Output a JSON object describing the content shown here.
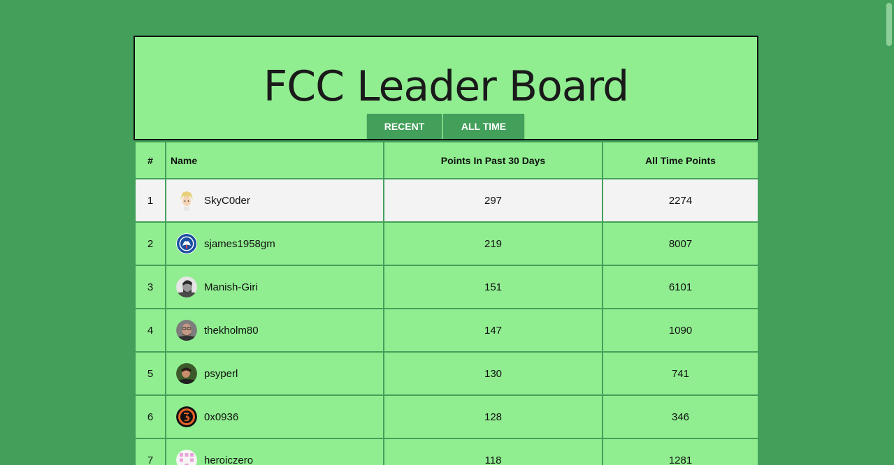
{
  "header": {
    "title": "FCC Leader Board",
    "tabs": [
      "RECENT",
      "ALL TIME"
    ]
  },
  "table": {
    "columns": [
      "#",
      "Name",
      "Points In Past 30 Days",
      "All Time Points"
    ],
    "rows": [
      {
        "rank": "1",
        "name": "SkyC0der",
        "recent": "297",
        "alltime": "2274",
        "avatar": "anime-avatar"
      },
      {
        "rank": "2",
        "name": "sjames1958gm",
        "recent": "219",
        "alltime": "8007",
        "avatar": "chelsea-crest-avatar"
      },
      {
        "rank": "3",
        "name": "Manish-Giri",
        "recent": "151",
        "alltime": "6101",
        "avatar": "photo-avatar"
      },
      {
        "rank": "4",
        "name": "thekholm80",
        "recent": "147",
        "alltime": "1090",
        "avatar": "photo-avatar"
      },
      {
        "rank": "5",
        "name": "psyperl",
        "recent": "130",
        "alltime": "741",
        "avatar": "photo-avatar"
      },
      {
        "rank": "6",
        "name": "0x0936",
        "recent": "128",
        "alltime": "346",
        "avatar": "number-3-avatar"
      },
      {
        "rank": "7",
        "name": "heroiczero",
        "recent": "118",
        "alltime": "1281",
        "avatar": "identicon-avatar"
      }
    ]
  },
  "colors": {
    "page_bg": "#43a05a",
    "panel_bg": "#90ee90",
    "highlight_row": "#f3f3f3",
    "button_bg": "#43a05a"
  }
}
